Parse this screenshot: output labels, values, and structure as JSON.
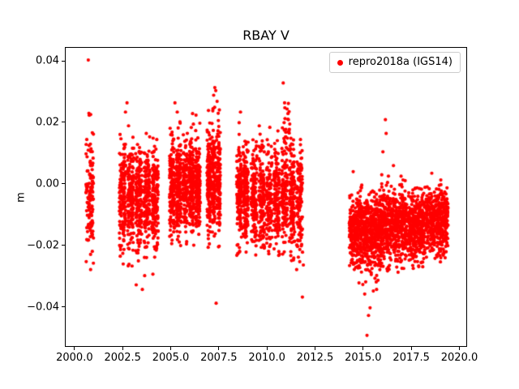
{
  "chart_data": {
    "type": "scatter",
    "title": "RBAY V",
    "xlabel": "",
    "ylabel": "m",
    "xlim": [
      1999.5,
      2020.4
    ],
    "ylim": [
      -0.053,
      0.0445
    ],
    "grid": false,
    "legend_position": "upper right",
    "marker": {
      "shape": "dot",
      "color": "#ff0000",
      "radius_px": 2.1
    },
    "render_seed": 20180101,
    "xticks": [
      {
        "value": 2000.0,
        "label": "2000.0"
      },
      {
        "value": 2002.5,
        "label": "2002.5"
      },
      {
        "value": 2005.0,
        "label": "2005.0"
      },
      {
        "value": 2007.5,
        "label": "2007.5"
      },
      {
        "value": 2010.0,
        "label": "2010.0"
      },
      {
        "value": 2012.5,
        "label": "2012.5"
      },
      {
        "value": 2015.0,
        "label": "2015.0"
      },
      {
        "value": 2017.5,
        "label": "2017.5"
      },
      {
        "value": 2020.0,
        "label": "2020.0"
      }
    ],
    "yticks": [
      {
        "value": -0.04,
        "label": "−0.04"
      },
      {
        "value": -0.02,
        "label": "−0.02"
      },
      {
        "value": 0.0,
        "label": "0.00"
      },
      {
        "value": 0.02,
        "label": "0.02"
      },
      {
        "value": 0.04,
        "label": "0.04"
      }
    ],
    "series": [
      {
        "name": "repro2018a (IGS14)",
        "color": "#ff0000",
        "point_style": "filled-circle",
        "clusters": [
          {
            "x0": 2000.55,
            "x1": 2000.95,
            "count": 130,
            "y_mean": -0.002,
            "y_std": 0.012,
            "y_min": -0.026,
            "y_max": 0.0235,
            "stripes": 1
          },
          {
            "x0": 2002.3,
            "x1": 2004.42,
            "count": 780,
            "y_mean": -0.005,
            "y_std": 0.0085,
            "y_min": -0.027,
            "y_max": 0.017,
            "stripes": 5
          },
          {
            "x0": 2004.92,
            "x1": 2006.6,
            "count": 760,
            "y_mean": -0.001,
            "y_std": 0.008,
            "y_min": -0.021,
            "y_max": 0.021,
            "stripes": 5
          },
          {
            "x0": 2006.88,
            "x1": 2007.62,
            "count": 380,
            "y_mean": 0.001,
            "y_std": 0.0085,
            "y_min": -0.021,
            "y_max": 0.026,
            "stripes": 3
          },
          {
            "x0": 2008.42,
            "x1": 2009.1,
            "count": 320,
            "y_mean": -0.003,
            "y_std": 0.008,
            "y_min": -0.024,
            "y_max": 0.017,
            "stripes": 2
          },
          {
            "x0": 2009.17,
            "x1": 2011.95,
            "count": 880,
            "y_mean": -0.005,
            "y_std": 0.0085,
            "y_min": -0.026,
            "y_max": 0.018,
            "stripes": 7
          },
          {
            "x0": 2010.8,
            "x1": 2011.3,
            "count": 28,
            "y_mean": 0.016,
            "y_std": 0.004,
            "y_min": 0.008,
            "y_max": 0.027,
            "stripes": 1
          },
          {
            "x0": 2014.3,
            "x1": 2015.95,
            "count": 680,
            "y_mean": -0.016,
            "y_std": 0.0062,
            "y_min": -0.034,
            "y_max": 0.001,
            "stripes": 1
          },
          {
            "x0": 2015.95,
            "x1": 2017.3,
            "count": 540,
            "y_mean": -0.013,
            "y_std": 0.006,
            "y_min": -0.03,
            "y_max": 0.004,
            "stripes": 1
          },
          {
            "x0": 2017.35,
            "x1": 2018.25,
            "count": 380,
            "y_mean": -0.014,
            "y_std": 0.0055,
            "y_min": -0.028,
            "y_max": -0.001,
            "stripes": 1
          },
          {
            "x0": 2018.3,
            "x1": 2019.45,
            "count": 430,
            "y_mean": -0.012,
            "y_std": 0.0055,
            "y_min": -0.026,
            "y_max": 0.003,
            "stripes": 1
          }
        ],
        "outliers": [
          [
            2000.68,
            0.0405
          ],
          [
            2000.8,
            -0.028
          ],
          [
            2002.62,
            0.0235
          ],
          [
            2002.7,
            0.0265
          ],
          [
            2002.78,
            0.019
          ],
          [
            2003.18,
            -0.033
          ],
          [
            2003.5,
            -0.0345
          ],
          [
            2003.62,
            -0.03
          ],
          [
            2004.05,
            -0.0295
          ],
          [
            2005.2,
            0.0265
          ],
          [
            2005.32,
            0.0235
          ],
          [
            2006.12,
            0.023
          ],
          [
            2006.3,
            0.0225
          ],
          [
            2006.95,
            0.024
          ],
          [
            2007.22,
            0.029
          ],
          [
            2007.28,
            0.0315
          ],
          [
            2007.33,
            0.0305
          ],
          [
            2007.4,
            0.027
          ],
          [
            2007.35,
            -0.039
          ],
          [
            2008.55,
            0.02
          ],
          [
            2008.62,
            0.0235
          ],
          [
            2009.6,
            0.019
          ],
          [
            2010.15,
            0.0185
          ],
          [
            2010.85,
            0.033
          ],
          [
            2010.92,
            0.0265
          ],
          [
            2011.05,
            0.0245
          ],
          [
            2011.12,
            0.021
          ],
          [
            2011.55,
            -0.028
          ],
          [
            2011.85,
            -0.037
          ],
          [
            2011.9,
            -0.0265
          ],
          [
            2014.5,
            0.004
          ],
          [
            2015.1,
            -0.036
          ],
          [
            2015.22,
            -0.0495
          ],
          [
            2015.3,
            -0.043
          ],
          [
            2015.38,
            -0.0405
          ],
          [
            2015.55,
            -0.035
          ],
          [
            2015.72,
            -0.0345
          ],
          [
            2016.05,
            0.0105
          ],
          [
            2016.18,
            0.021
          ],
          [
            2016.22,
            0.0165
          ],
          [
            2016.6,
            0.006
          ],
          [
            2018.6,
            0.0035
          ],
          [
            2019.05,
            -0.0255
          ]
        ]
      }
    ]
  }
}
